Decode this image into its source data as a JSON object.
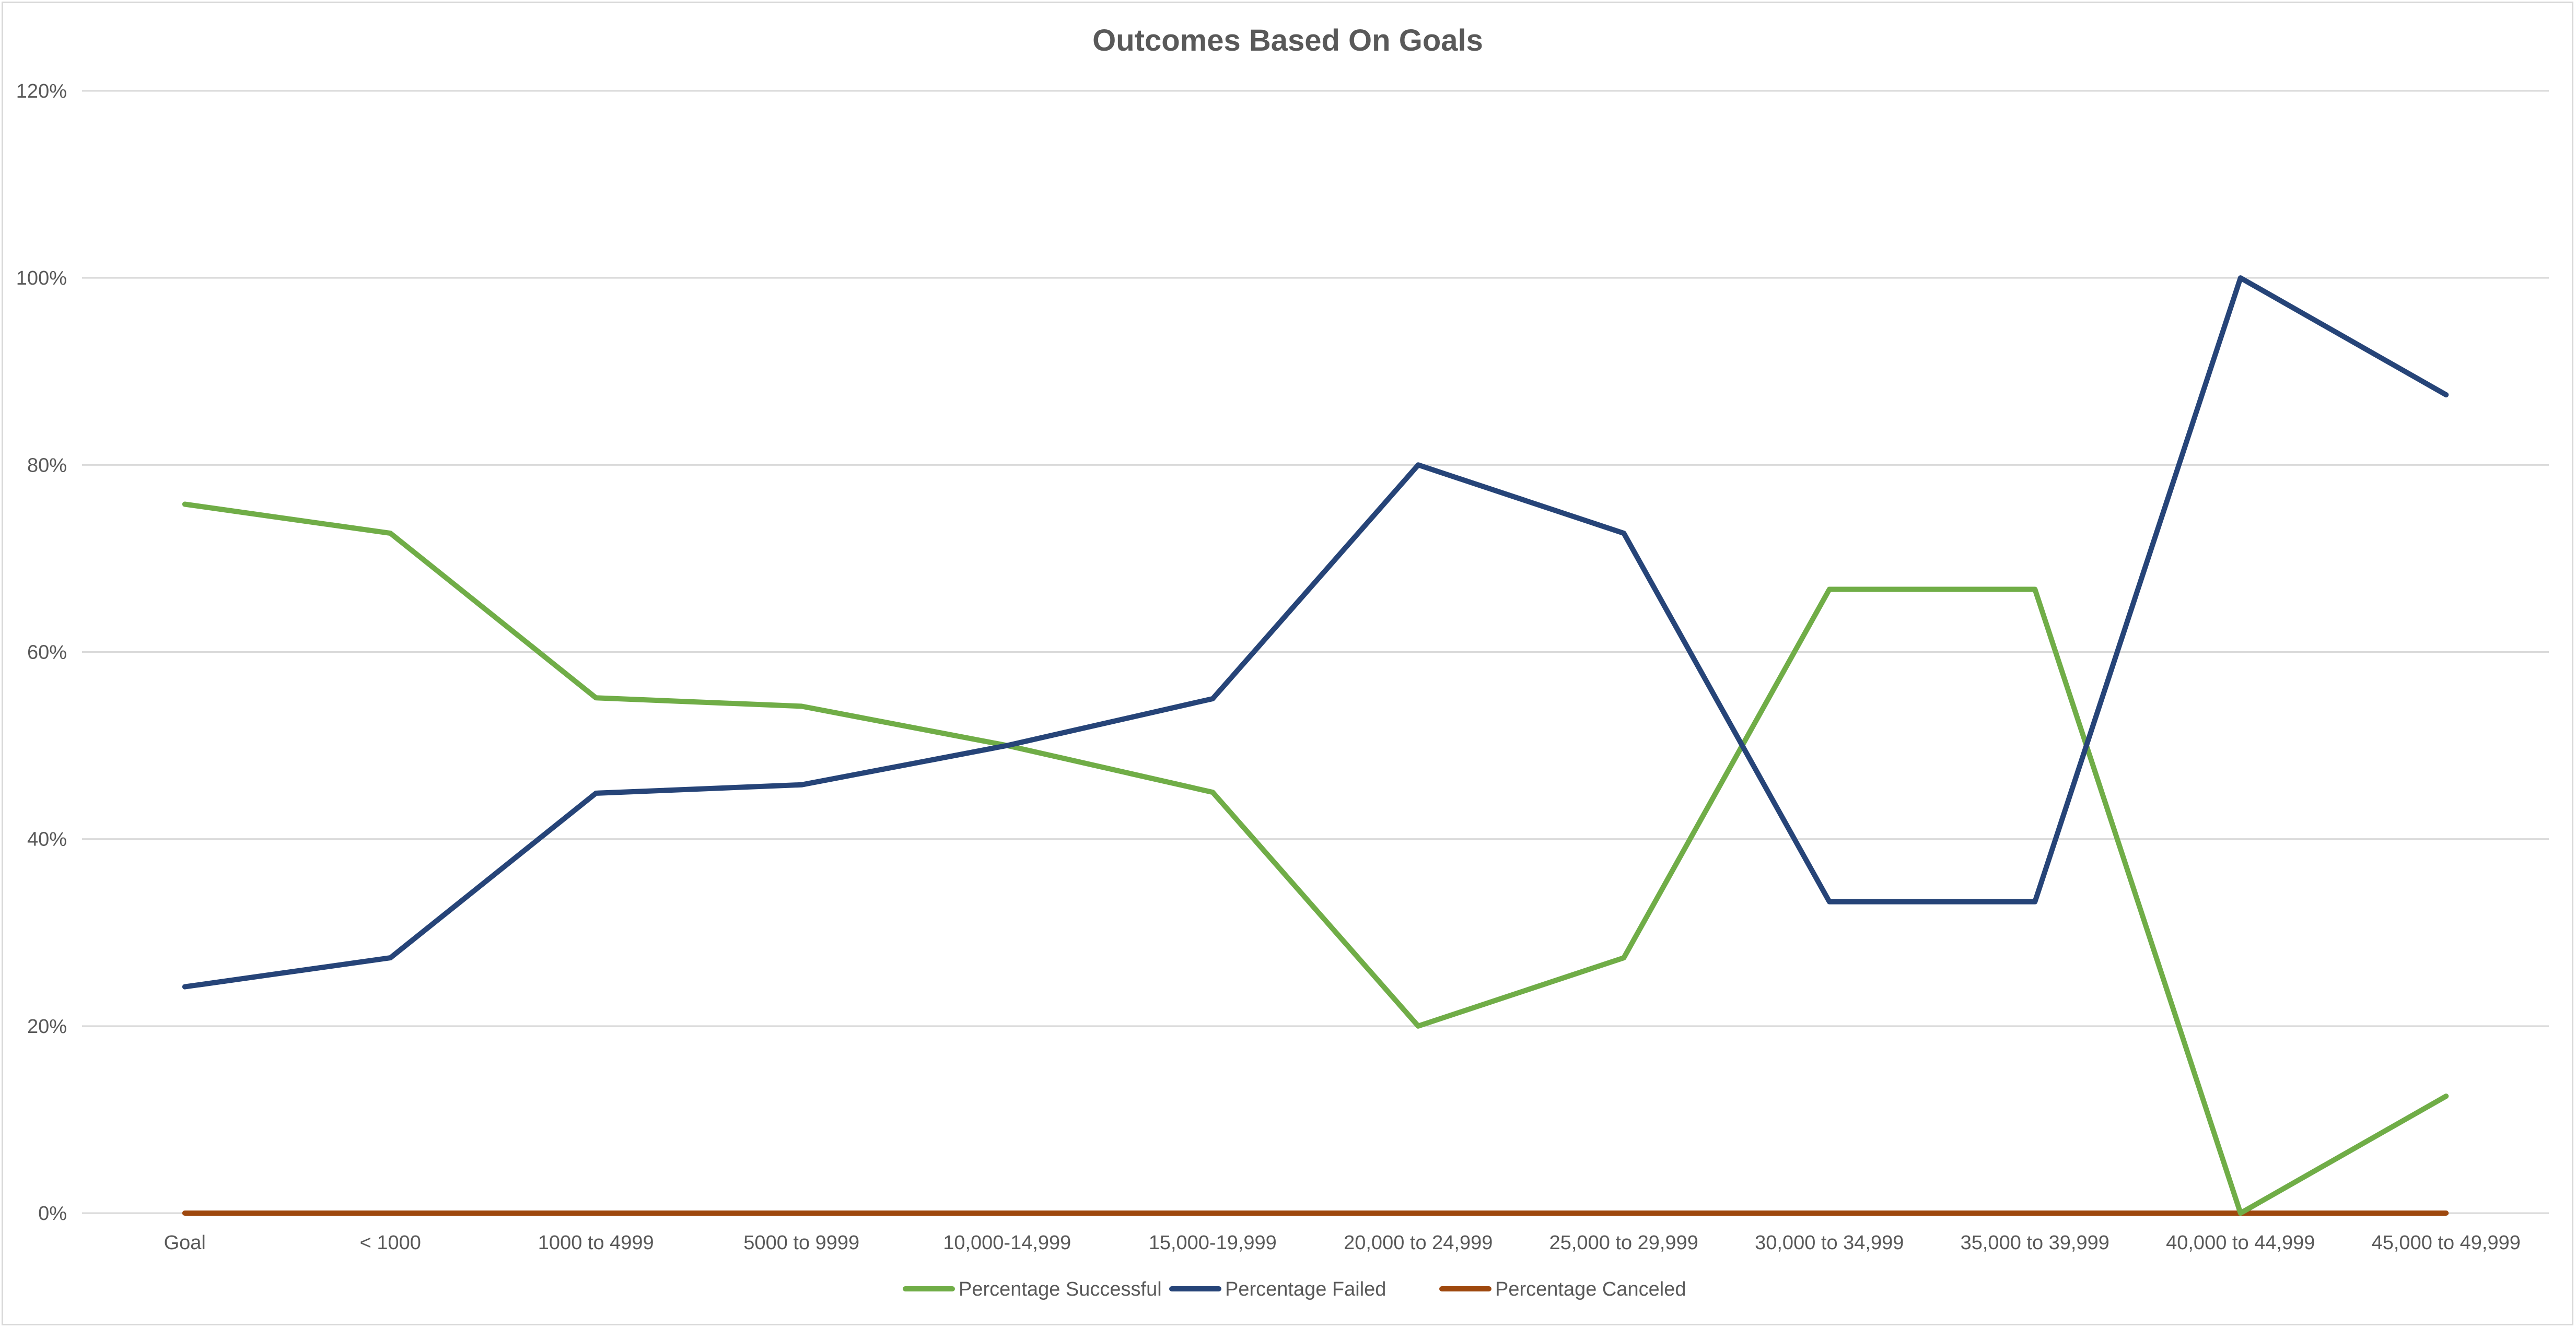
{
  "chart_data": {
    "type": "line",
    "title": "Outcomes Based On Goals",
    "xlabel": "",
    "ylabel": "",
    "categories": [
      "Goal",
      "< 1000",
      "1000 to 4999",
      "5000 to 9999",
      "10,000-14,999",
      "15,000-19,999",
      "20,000 to 24,999",
      "25,000 to 29,999",
      "30,000 to 34,999",
      "35,000 to 39,999",
      "40,000 to 44,999",
      "45,000 to 49,999"
    ],
    "ylim": [
      0,
      1.2
    ],
    "yticks": [
      0,
      0.2,
      0.4,
      0.6,
      0.8,
      1.0,
      1.2
    ],
    "ytick_labels": [
      "0%",
      "20%",
      "40%",
      "60%",
      "80%",
      "100%",
      "120%"
    ],
    "grid": true,
    "legend_position": "bottom",
    "series": [
      {
        "name": "Percentage Successful",
        "color": "#70ad47",
        "values": [
          0.758,
          0.727,
          0.551,
          0.542,
          0.5,
          0.45,
          0.2,
          0.273,
          0.667,
          0.667,
          0.0,
          0.125
        ]
      },
      {
        "name": "Percentage Failed",
        "color": "#264478",
        "values": [
          0.242,
          0.273,
          0.449,
          0.458,
          0.5,
          0.55,
          0.8,
          0.727,
          0.333,
          0.333,
          1.0,
          0.875
        ]
      },
      {
        "name": "Percentage Canceled",
        "color": "#9e480e",
        "values": [
          0,
          0,
          0,
          0,
          0,
          0,
          0,
          0,
          0,
          0,
          0,
          0
        ]
      }
    ]
  }
}
